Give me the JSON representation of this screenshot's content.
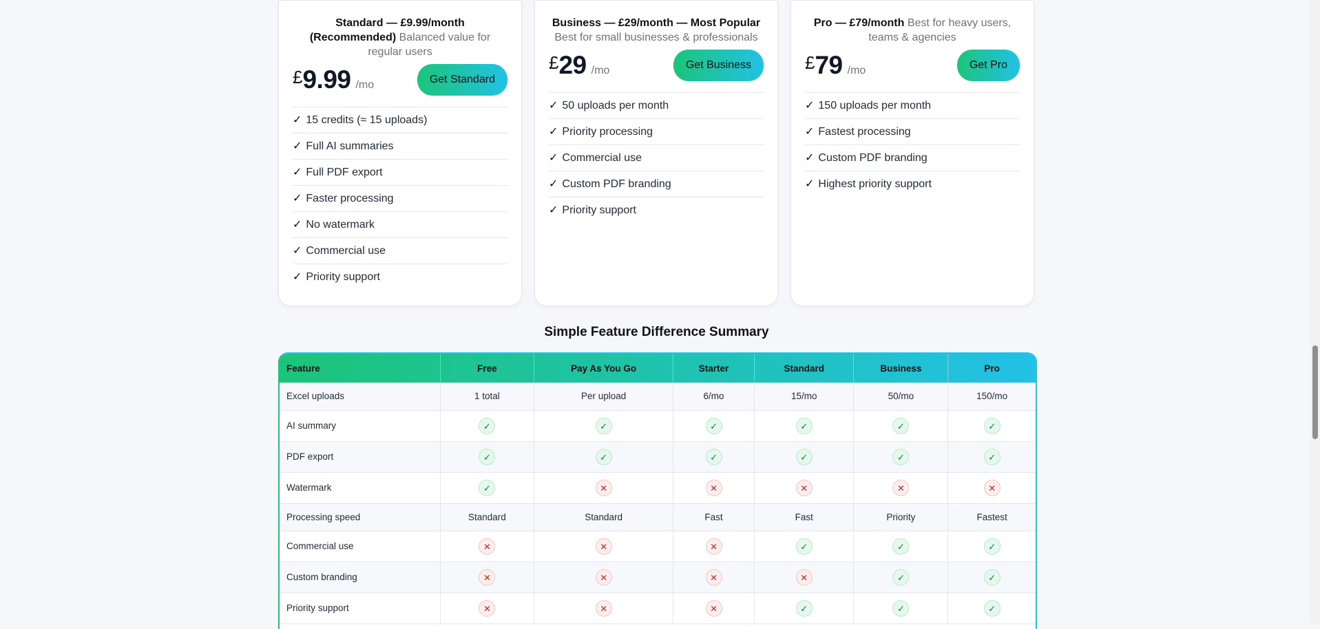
{
  "cards": [
    {
      "name": "Standard — £9.99/month (Recommended)",
      "desc": "Balanced value for regular users",
      "currency": "£",
      "amount": "9.99",
      "period": "/mo",
      "button": "Get Standard",
      "features": [
        "15 credits (≈ 15 uploads)",
        "Full AI summaries",
        "Full PDF export",
        "Faster processing",
        "No watermark",
        "Commercial use",
        "Priority support"
      ]
    },
    {
      "name": "Business — £29/month — Most Popular",
      "desc": "Best for small businesses & professionals",
      "currency": "£",
      "amount": "29",
      "period": "/mo",
      "button": "Get Business",
      "features": [
        "50 uploads per month",
        "Priority processing",
        "Commercial use",
        "Custom PDF branding",
        "Priority support"
      ]
    },
    {
      "name": "Pro — £79/month",
      "desc": "Best for heavy users, teams & agencies",
      "currency": "£",
      "amount": "79",
      "period": "/mo",
      "button": "Get Pro",
      "features": [
        "150 uploads per month",
        "Fastest processing",
        "Custom PDF branding",
        "Highest priority support"
      ]
    }
  ],
  "check_glyph": "✓",
  "summary": {
    "title": "Simple Feature Difference Summary",
    "headers": [
      "Feature",
      "Free",
      "Pay As You Go",
      "Starter",
      "Standard",
      "Business",
      "Pro"
    ],
    "rows": [
      {
        "label": "Excel uploads",
        "cells": [
          "1 total",
          "Per upload",
          "6/mo",
          "15/mo",
          "50/mo",
          "150/mo"
        ]
      },
      {
        "label": "AI summary",
        "cells": [
          "yes",
          "yes",
          "yes",
          "yes",
          "yes",
          "yes"
        ]
      },
      {
        "label": "PDF export",
        "cells": [
          "yes",
          "yes",
          "yes",
          "yes",
          "yes",
          "yes"
        ]
      },
      {
        "label": "Watermark",
        "cells": [
          "yes",
          "no",
          "no",
          "no",
          "no",
          "no"
        ]
      },
      {
        "label": "Processing speed",
        "cells": [
          "Standard",
          "Standard",
          "Fast",
          "Fast",
          "Priority",
          "Fastest"
        ]
      },
      {
        "label": "Commercial use",
        "cells": [
          "no",
          "no",
          "no",
          "yes",
          "yes",
          "yes"
        ]
      },
      {
        "label": "Custom branding",
        "cells": [
          "no",
          "no",
          "no",
          "no",
          "yes",
          "yes"
        ]
      },
      {
        "label": "Priority support",
        "cells": [
          "no",
          "no",
          "no",
          "yes",
          "yes",
          "yes"
        ]
      }
    ],
    "yes_glyph": "✓",
    "no_glyph": "✕"
  },
  "colors": {
    "accent_start": "#1cc47a",
    "accent_end": "#22c1e6",
    "yes": "#0f7a3f",
    "no": "#c02626"
  }
}
